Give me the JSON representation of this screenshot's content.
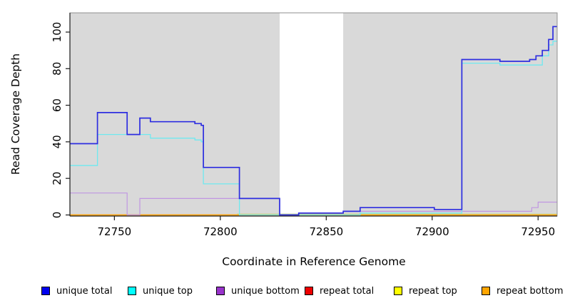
{
  "chart_data": {
    "type": "line",
    "subtype": "step-coverage-plot",
    "title": "",
    "xlabel": "Coordinate in Reference Genome",
    "ylabel": "Read Coverage Depth",
    "xlim": [
      72729,
      72959
    ],
    "ylim": [
      0,
      110
    ],
    "xticks": [
      72750,
      72800,
      72850,
      72900,
      72950
    ],
    "yticks": [
      0,
      20,
      40,
      60,
      80,
      100
    ],
    "grid": false,
    "legend_position": "bottom",
    "plot_background": "#ffffff",
    "shaded_regions": [
      {
        "x0": 72729,
        "x1": 72828,
        "color": "#d9d9d9"
      },
      {
        "x0": 72858,
        "x1": 72959,
        "color": "#d9d9d9"
      }
    ],
    "unshaded_gap": {
      "x0": 72828,
      "x1": 72858
    },
    "series": [
      {
        "name": "repeat total",
        "color": "#ee0000",
        "line_color": "#dd0000",
        "width": 1.2,
        "steps": [
          [
            72729,
            0
          ]
        ]
      },
      {
        "name": "repeat top",
        "color": "#ffff00",
        "line_color": "#c6dc96",
        "width": 1.2,
        "steps": [
          [
            72729,
            0
          ],
          [
            72808,
            0.5
          ]
        ]
      },
      {
        "name": "repeat bottom",
        "color": "#ffa500",
        "line_color": "#ffa500",
        "width": 1.6,
        "steps": [
          [
            72729,
            0
          ]
        ]
      },
      {
        "name": "unique bottom",
        "color": "#9933cc",
        "line_color": "#c096e2",
        "width": 1.2,
        "steps": [
          [
            72729,
            12
          ],
          [
            72756,
            0
          ],
          [
            72762,
            9
          ],
          [
            72828,
            0
          ],
          [
            72837,
            1
          ],
          [
            72858,
            2
          ],
          [
            72947,
            4
          ],
          [
            72950,
            7
          ]
        ]
      },
      {
        "name": "unique top",
        "color": "#00ffff",
        "line_color": "#6fe9f0",
        "width": 1.3,
        "steps": [
          [
            72729,
            27
          ],
          [
            72742,
            44
          ],
          [
            72767,
            42
          ],
          [
            72788,
            41
          ],
          [
            72791,
            40
          ],
          [
            72792,
            17
          ],
          [
            72809,
            0
          ],
          [
            72866,
            1
          ],
          [
            72901,
            1
          ],
          [
            72914,
            83
          ],
          [
            72932,
            82
          ],
          [
            72952,
            87
          ],
          [
            72955,
            93
          ],
          [
            72957,
            95
          ]
        ]
      },
      {
        "name": "unique total",
        "color": "#0000ee",
        "line_color": "#2d2de0",
        "width": 1.7,
        "steps": [
          [
            72729,
            39
          ],
          [
            72742,
            56
          ],
          [
            72756,
            44
          ],
          [
            72762,
            53
          ],
          [
            72767,
            51
          ],
          [
            72788,
            50
          ],
          [
            72791,
            49
          ],
          [
            72792,
            26
          ],
          [
            72809,
            9
          ],
          [
            72828,
            0
          ],
          [
            72837,
            1
          ],
          [
            72858,
            2
          ],
          [
            72866,
            4
          ],
          [
            72901,
            3
          ],
          [
            72914,
            85
          ],
          [
            72932,
            84
          ],
          [
            72946,
            85
          ],
          [
            72949,
            87
          ],
          [
            72952,
            90
          ],
          [
            72955,
            96
          ],
          [
            72957,
            103
          ]
        ]
      }
    ]
  },
  "legend": {
    "items": [
      {
        "label": "unique total",
        "color": "#0000ee"
      },
      {
        "label": "unique top",
        "color": "#00ffff"
      },
      {
        "label": "unique bottom",
        "color": "#9933cc"
      },
      {
        "label": "repeat total",
        "color": "#ee0000"
      },
      {
        "label": "repeat top",
        "color": "#ffff00"
      },
      {
        "label": "repeat bottom",
        "color": "#ffa500"
      }
    ]
  }
}
